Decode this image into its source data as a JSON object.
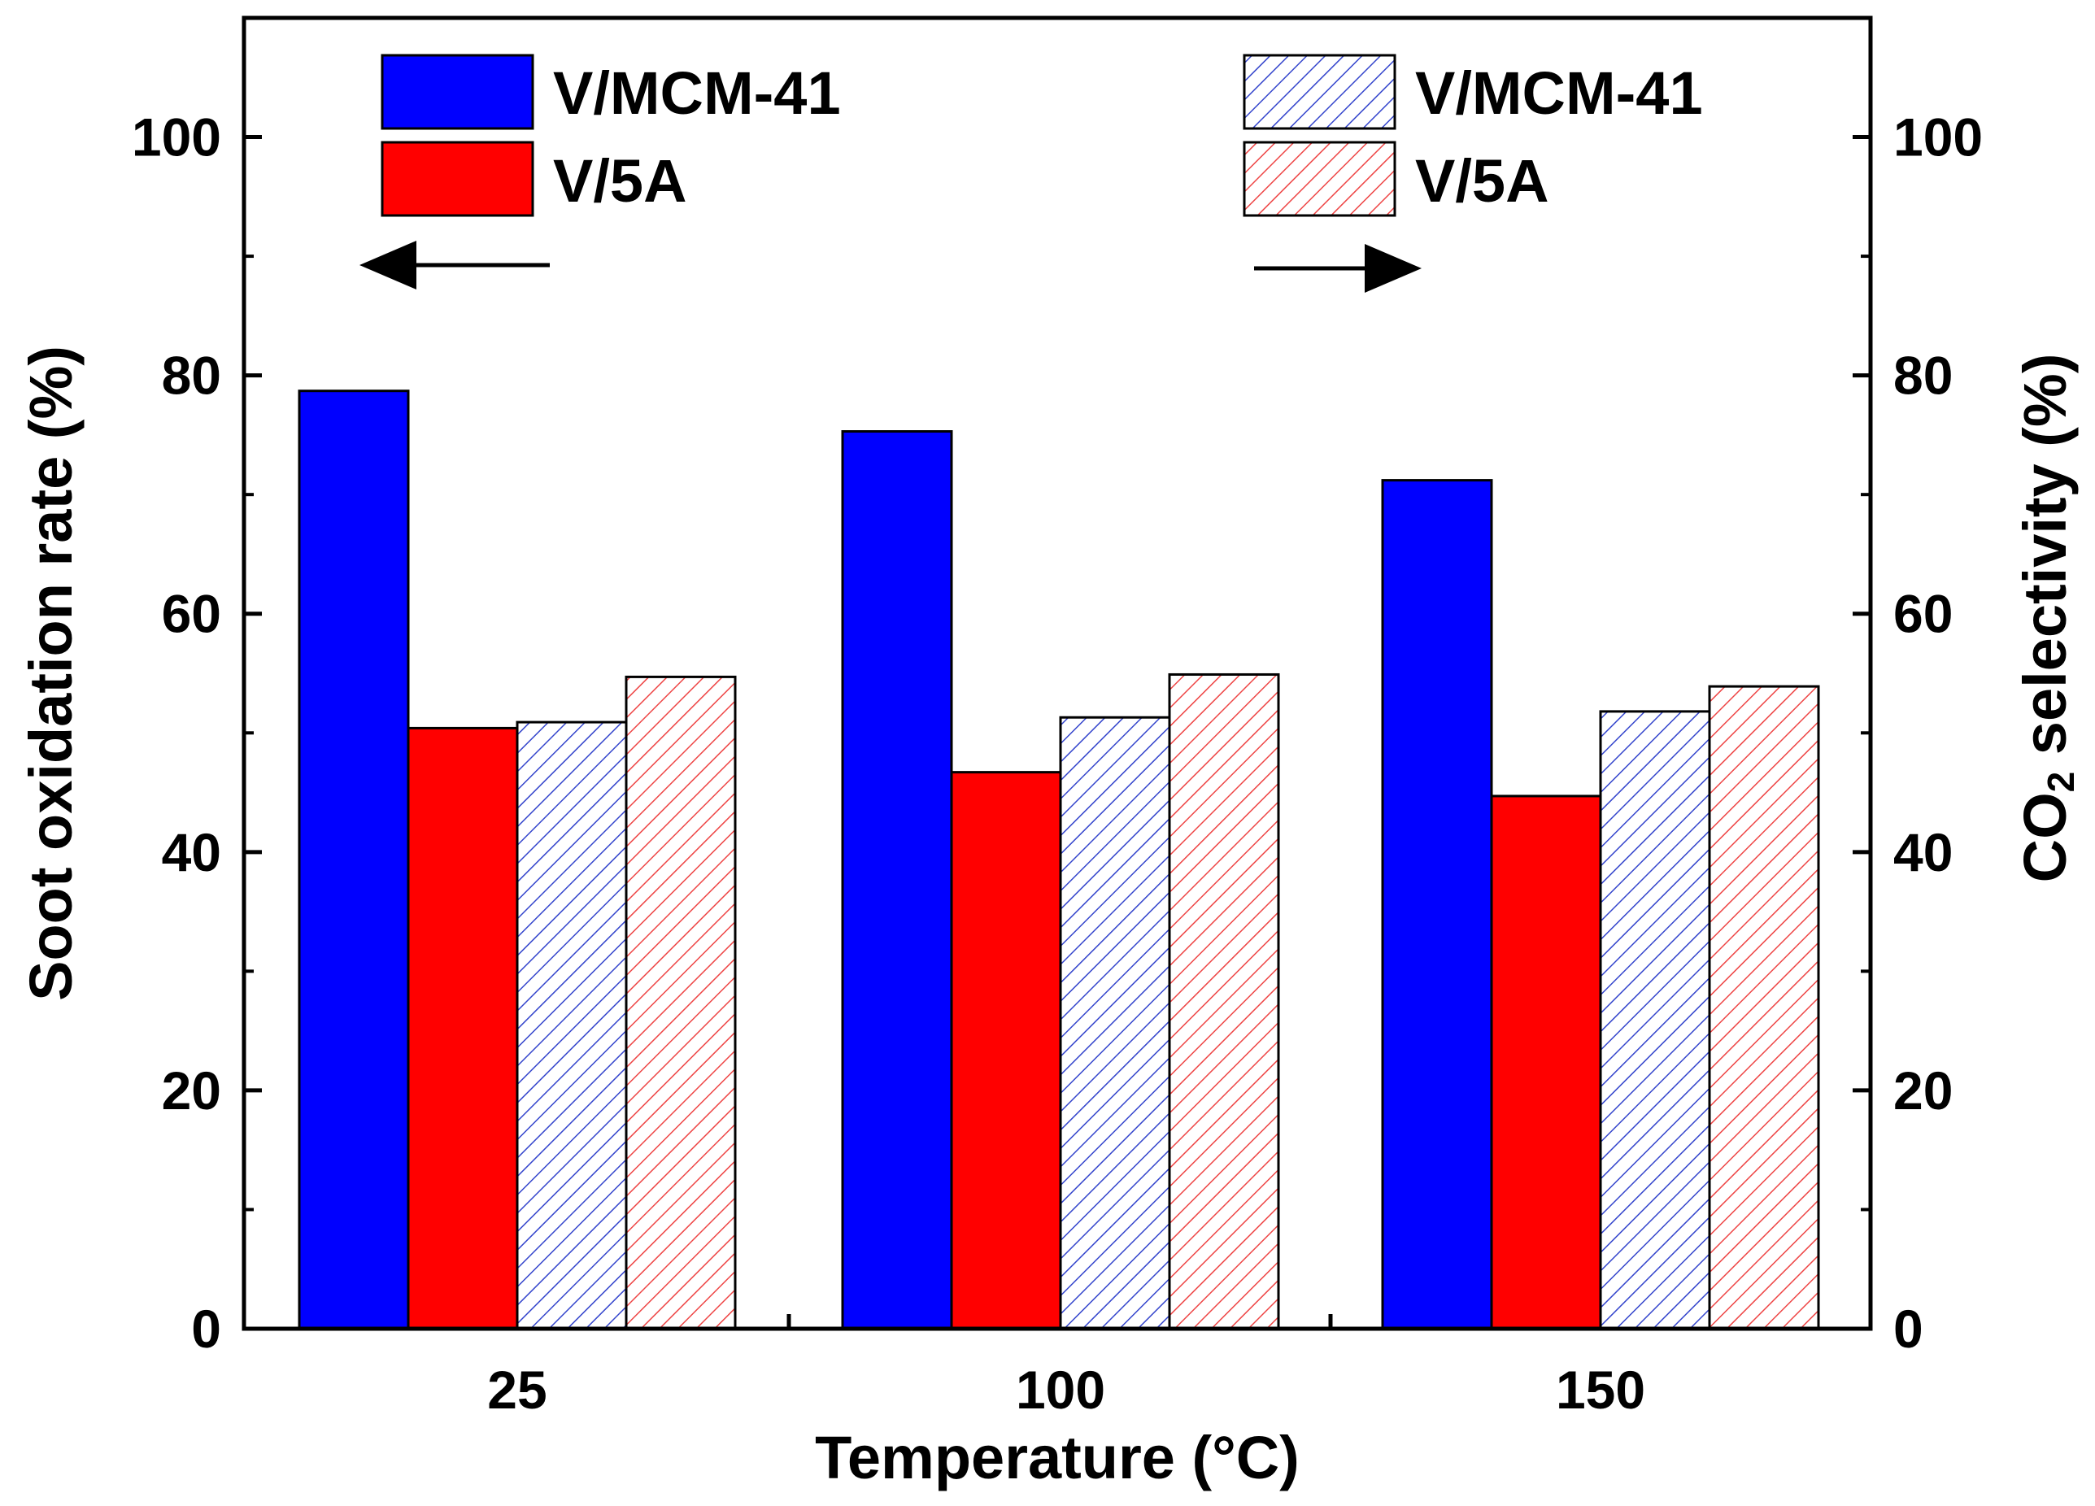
{
  "chart_data": {
    "type": "bar",
    "xlabel": "Temperature (°C)",
    "ylabel_left": "Soot oxidation rate (%)",
    "ylabel_right_main": "CO",
    "ylabel_right_sub": "2",
    "ylabel_right_rest": " selectivity (%)",
    "categories": [
      "25",
      "100",
      "150"
    ],
    "ylim": [
      0,
      110
    ],
    "yticks": [
      "0",
      "20",
      "40",
      "60",
      "80",
      "100"
    ],
    "series": [
      {
        "name": "V/MCM-41",
        "axis": "left",
        "style": "solid",
        "color": "#0000ff",
        "values": [
          78.7,
          75.3,
          71.2
        ]
      },
      {
        "name": "V/5A",
        "axis": "left",
        "style": "solid",
        "color": "#ff0000",
        "values": [
          50.4,
          46.7,
          44.7
        ]
      },
      {
        "name": "V/MCM-41",
        "axis": "right",
        "style": "hatched",
        "color": "#3344cc",
        "values": [
          50.9,
          51.3,
          51.8
        ]
      },
      {
        "name": "V/5A",
        "axis": "right",
        "style": "hatched",
        "color": "#ee4444",
        "values": [
          54.7,
          54.9,
          53.9
        ]
      }
    ],
    "annotations": {
      "left_arrow": "points to left axis (solid bars)",
      "right_arrow": "points to right axis (hatched bars)"
    }
  }
}
